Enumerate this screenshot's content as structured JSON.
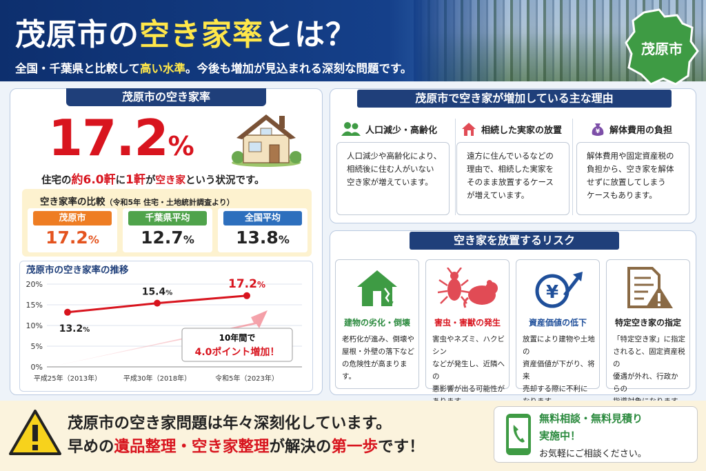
{
  "header": {
    "title_pre": "茂原市の",
    "title_hl": "空き家率",
    "title_post": "とは？",
    "sub_pre": "全国・千葉県と比較して",
    "sub_hl": "高い水準",
    "sub_post": "。今後も増加が見込まれる深刻な問題です。",
    "region_label": "茂原市"
  },
  "rate": {
    "heading": "茂原市の空き家率",
    "value": "17.2",
    "unit": "%",
    "lead_1": "住宅の",
    "lead_2": "約6.0軒",
    "lead_3": "に",
    "lead_4": "1軒",
    "lead_5": "が",
    "lead_6": "空き家",
    "lead_7": "という状況です。"
  },
  "comparison": {
    "title": "空き家率の比較",
    "note": "（令和5年 住宅・土地統計調査より）",
    "items": [
      {
        "label": "茂原市",
        "value": "17.2",
        "unit": "%",
        "color": "#ee7d23",
        "value_color": "#e4531e"
      },
      {
        "label": "千葉県平均",
        "value": "12.7",
        "unit": "%",
        "color": "#4fa34b",
        "value_color": "#222222"
      },
      {
        "label": "全国平均",
        "value": "13.8",
        "unit": "%",
        "color": "#2d6fbd",
        "value_color": "#222222"
      }
    ]
  },
  "chart_data": {
    "type": "line",
    "title": "茂原市の空き家率の推移",
    "categories": [
      "平成25年（2013年）",
      "平成30年（2018年）",
      "令和5年（2023年）"
    ],
    "series": [
      {
        "values": [
          13.2,
          15.4,
          17.2
        ]
      }
    ],
    "data_labels": [
      "13.2",
      "15.4",
      "17.2"
    ],
    "data_label_unit": "%",
    "yticks": [
      "0%",
      "5%",
      "10%",
      "15%",
      "20%"
    ],
    "ylim": [
      0,
      20
    ],
    "grid": true,
    "callout_1": "10年間で",
    "callout_2": "4.0ポイント増加！"
  },
  "reasons": {
    "heading": "茂原市で空き家が増加している主な理由",
    "items": [
      {
        "title": "人口減少・高齢化",
        "icon": "people-icon",
        "text": [
          "人口減少や高齢化により、",
          "相続後に住む人がいない",
          "空き家が増えています。"
        ]
      },
      {
        "title": "相続した実家の放置",
        "icon": "inherited-house-icon",
        "text": [
          "遠方に住んでいるなどの",
          "理由で、相続した実家を",
          "そのまま放置するケース",
          "が増えています。"
        ]
      },
      {
        "title": "解体費用の負担",
        "icon": "money-bag-icon",
        "text": [
          "解体費用や固定資産税の",
          "負担から、空き家を解体",
          "せずに放置してしまう",
          "ケースもあります。"
        ]
      }
    ]
  },
  "risks": {
    "heading": "空き家を放置するリスク",
    "items": [
      {
        "title": "建物の劣化・倒壊",
        "icon": "broken-house-icon",
        "title_color": "#2b8a3e",
        "text": [
          "老朽化が進み、倒壊や",
          "屋根・外壁の落下など",
          "の危険性が高まります。"
        ]
      },
      {
        "title": "害虫・害獣の発生",
        "icon": "pest-icon",
        "title_color": "#d8141e",
        "text": [
          "害虫やネズミ、ハクビシン",
          "などが発生し、近隣への",
          "悪影響が出る可能性が",
          "あります。"
        ]
      },
      {
        "title": "資産価値の低下",
        "icon": "yen-down-icon",
        "title_color": "#1f4f9a",
        "text": [
          "放置により建物や土地の",
          "資産価値が下がり、将来",
          "売却する際に不利に",
          "なります。"
        ]
      },
      {
        "title": "特定空き家の指定",
        "icon": "document-warning-icon",
        "title_color": "#222222",
        "text": [
          "「特定空き家」に指定",
          "されると、固定資産税の",
          "優遇が外れ、行政からの",
          "指導対象になります。"
        ]
      }
    ]
  },
  "footer": {
    "line1": "茂原市の空き家問題は年々深刻化しています。",
    "line2_a": "早めの",
    "line2_b": "遺品整理・空き家整理",
    "line2_c": "が解決の",
    "line2_d": "第一歩",
    "line2_e": "です！",
    "contact_1": "無料相談・無料見積り",
    "contact_2": "実施中！",
    "contact_3": "お気軽にご相談ください。"
  }
}
